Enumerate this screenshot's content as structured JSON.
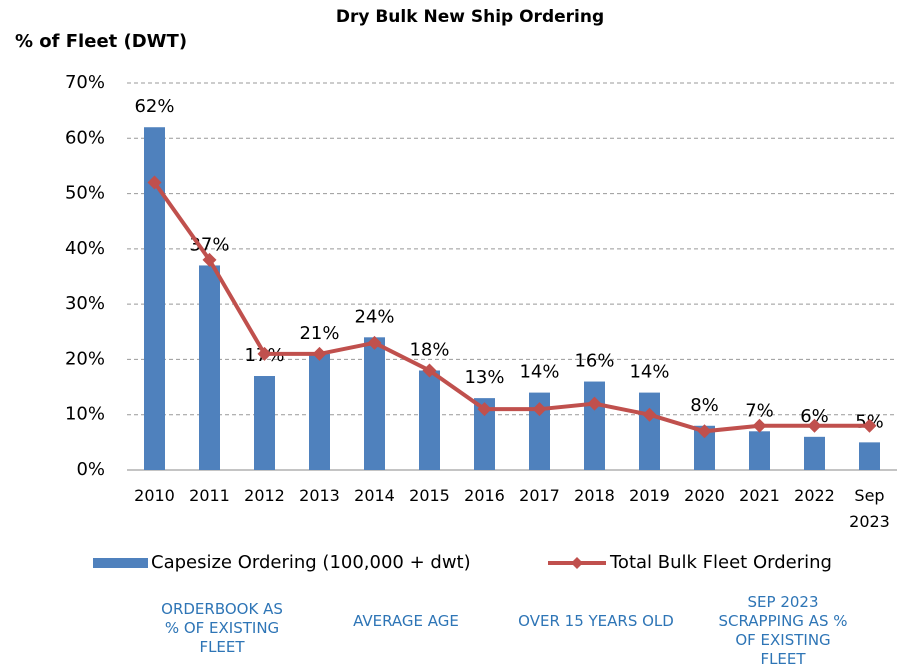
{
  "chart_data": {
    "type": "bar_line",
    "title": "Dry Bulk New Ship Ordering",
    "y_axis_label": "% of Fleet (DWT)",
    "categories": [
      "2010",
      "2011",
      "2012",
      "2013",
      "2014",
      "2015",
      "2016",
      "2017",
      "2018",
      "2019",
      "2020",
      "2021",
      "2022",
      "Sep 2023"
    ],
    "series": [
      {
        "name": "Capesize Ordering (100,000 + dwt)",
        "type": "bar",
        "color": "#4f81bd",
        "values": [
          62,
          37,
          17,
          21,
          24,
          18,
          13,
          14,
          16,
          14,
          8,
          7,
          6,
          5
        ],
        "value_labels": [
          "62%",
          "37%",
          "17%",
          "21%",
          "24%",
          "18%",
          "13%",
          "14%",
          "16%",
          "14%",
          "8%",
          "7%",
          "6%",
          "5%"
        ]
      },
      {
        "name": "Total Bulk Fleet Ordering",
        "type": "line",
        "color": "#c0504d",
        "values": [
          52,
          38,
          21,
          21,
          23,
          18,
          11,
          11,
          12,
          10,
          7,
          8,
          8,
          8
        ]
      }
    ],
    "ylim": [
      0,
      70
    ],
    "yticks": [
      {
        "value": 0,
        "label": "0%"
      },
      {
        "value": 10,
        "label": "10%"
      },
      {
        "value": 20,
        "label": "20%"
      },
      {
        "value": 30,
        "label": "30%"
      },
      {
        "value": 40,
        "label": "40%"
      },
      {
        "value": 50,
        "label": "50%"
      },
      {
        "value": 60,
        "label": "60%"
      },
      {
        "value": 70,
        "label": "70%"
      }
    ],
    "grid": true,
    "legend": "bottom"
  },
  "tabs": [
    "ORDERBOOK AS % OF EXISTING FLEET",
    "AVERAGE AGE",
    "OVER 15 YEARS OLD",
    "SEP 2023 SCRAPPING AS % OF EXISTING FLEET"
  ]
}
